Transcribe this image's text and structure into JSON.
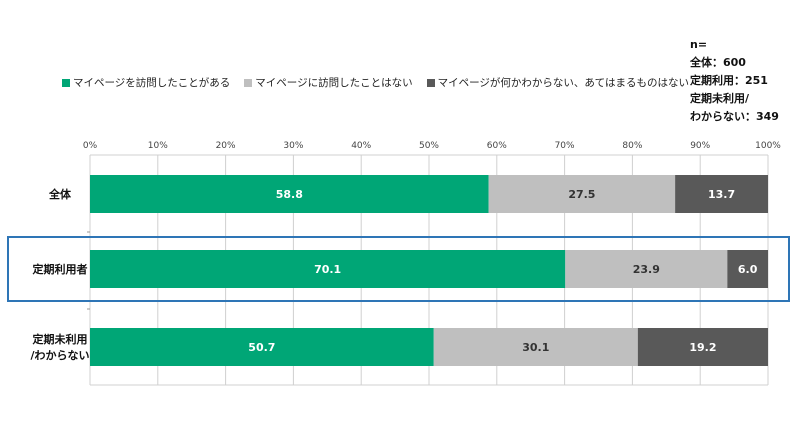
{
  "chart_data": {
    "type": "bar",
    "orientation": "horizontal",
    "stacked": true,
    "percent": true,
    "categories": [
      "全体",
      "定期利用者",
      "定期未利用/わからない"
    ],
    "category_lines": [
      [
        "全体"
      ],
      [
        "定期利用者"
      ],
      [
        "定期未利用",
        "/わからない"
      ]
    ],
    "series": [
      {
        "name": "マイページを訪問したことがある",
        "color": "#00a676",
        "values": [
          58.8,
          70.1,
          50.7
        ]
      },
      {
        "name": "マイページに訪問したことはない",
        "color": "#bfbfbf",
        "values": [
          27.5,
          23.9,
          30.1
        ]
      },
      {
        "name": "マイページが何かわからない、あてはまるものはない",
        "color": "#595959",
        "values": [
          13.7,
          6.0,
          19.2
        ]
      }
    ],
    "xlim": [
      0,
      100
    ],
    "ticks": [
      "0%",
      "10%",
      "20%",
      "30%",
      "40%",
      "50%",
      "60%",
      "70%",
      "80%",
      "90%",
      "100%"
    ],
    "grid": true,
    "legend": "top",
    "highlight_category": "定期利用者",
    "highlight_color": "#2e75b6"
  },
  "sample_note": {
    "header": "n=",
    "lines": [
      "全体：600",
      "定期利用：251",
      "定期未利用/",
      "わからない：349"
    ]
  }
}
